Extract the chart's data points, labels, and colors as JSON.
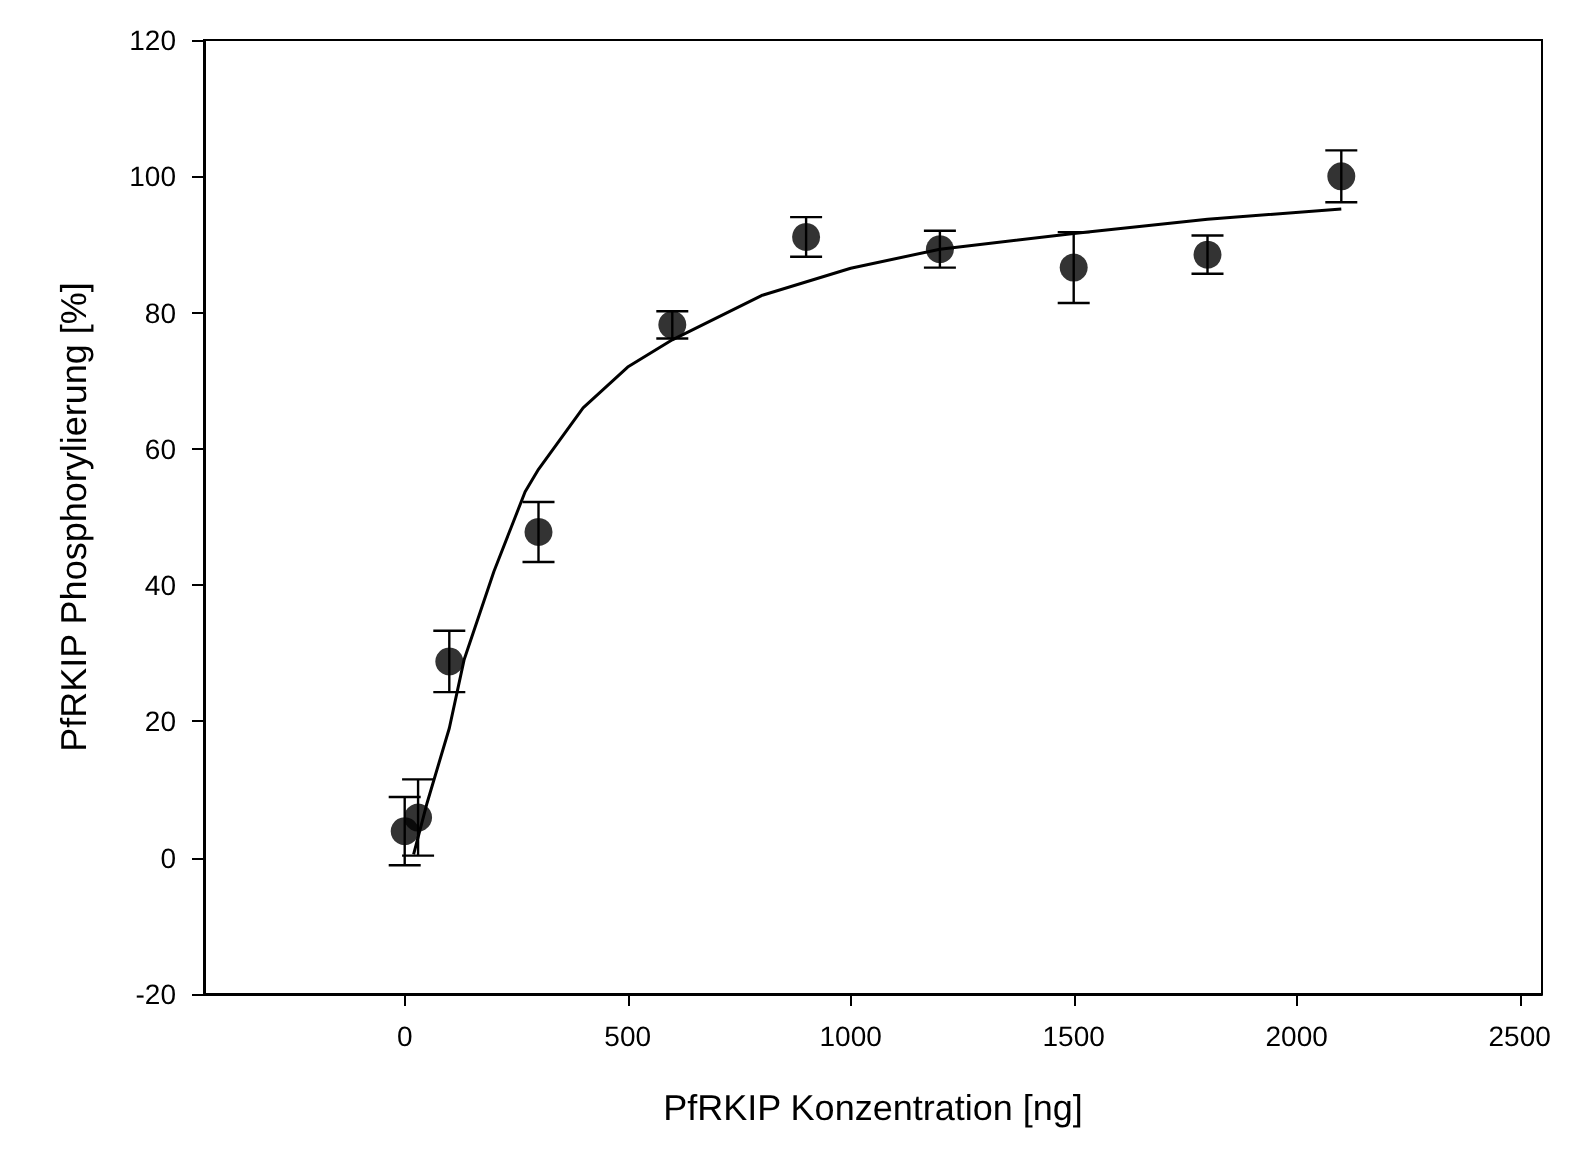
{
  "chart_data": {
    "type": "scatter",
    "xlabel": "PfRKIP Konzentration [ng]",
    "ylabel": "PfRKIP Phosphorylierung [%]",
    "xlim": [
      -450,
      2550
    ],
    "xticks": [
      0,
      500,
      1000,
      1500,
      2000,
      2500
    ],
    "ylim": [
      -20,
      120
    ],
    "yticks": [
      -20,
      0,
      20,
      40,
      60,
      80,
      100,
      120
    ],
    "grid": false,
    "series": [
      {
        "color": "#000000",
        "marker": "circle",
        "x": [
          0,
          30,
          100,
          300,
          600,
          900,
          1200,
          1500,
          1800,
          2100
        ],
        "values": [
          3.9,
          5.9,
          28.8,
          47.8,
          78.2,
          91.1,
          89.3,
          86.6,
          88.5,
          100
        ],
        "errors": [
          5,
          5.6,
          4.5,
          4.4,
          2,
          2.9,
          2.7,
          5.2,
          2.8,
          3.8
        ]
      },
      {
        "type": "line",
        "color": "#000000",
        "marker": "none",
        "line_style": "solid",
        "x": [
          20,
          50,
          100,
          133,
          200,
          270,
          300,
          400,
          500,
          600,
          800,
          1000,
          1200,
          1500,
          1800,
          2100
        ],
        "values": [
          0.5,
          8,
          19,
          29,
          42,
          53.7,
          57,
          66,
          72,
          76,
          82.5,
          86.5,
          89.3,
          91.6,
          93.7,
          95.2
        ]
      }
    ]
  }
}
